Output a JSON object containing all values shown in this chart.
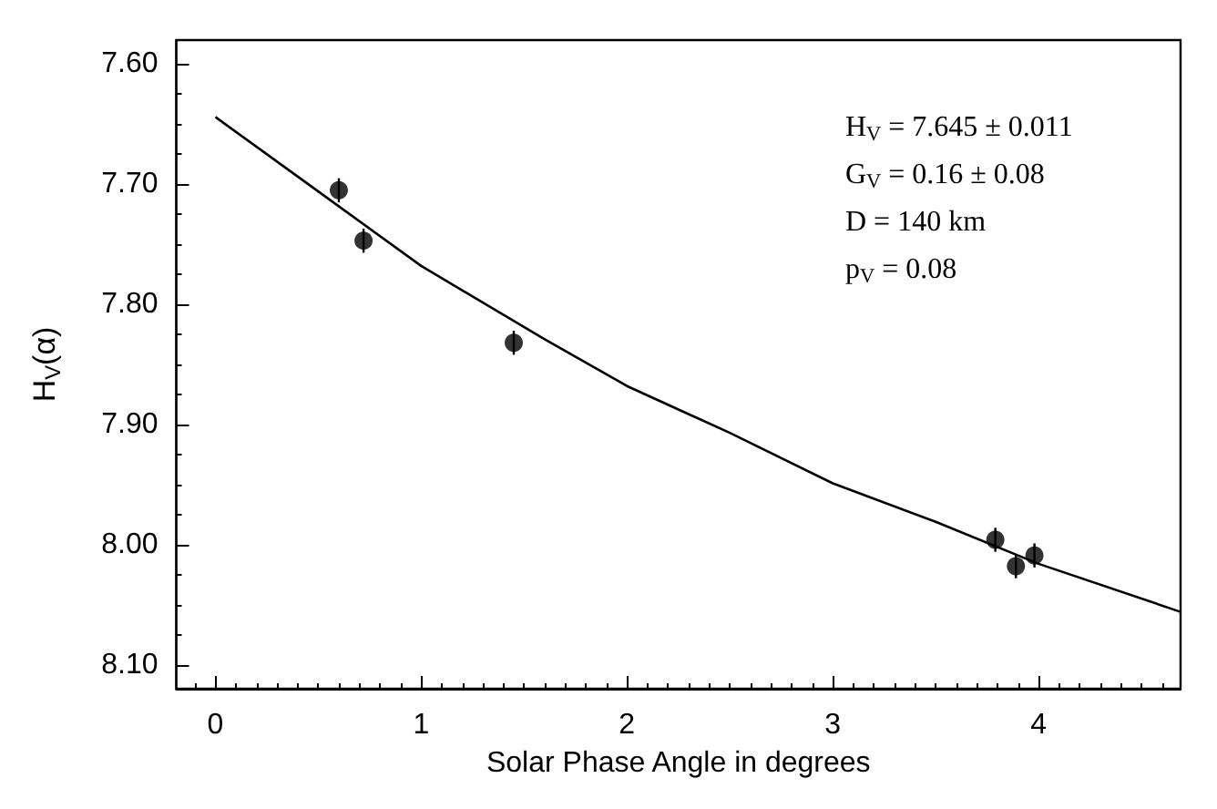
{
  "chart_data": {
    "type": "scatter",
    "xlabel": "Solar Phase Angle in degrees",
    "ylabel": "H$_{V}$(α)",
    "xlim": [
      -0.19,
      4.69
    ],
    "xticks": [
      0,
      1,
      2,
      3,
      4
    ],
    "ylim": [
      8.12,
      7.58
    ],
    "yticks": [
      {
        "value": 7.6,
        "label": "7.60"
      },
      {
        "value": 7.7,
        "label": "7.70"
      },
      {
        "value": 7.8,
        "label": "7.80"
      },
      {
        "value": 7.9,
        "label": "7.90"
      },
      {
        "value": 8.0,
        "label": "8.00"
      },
      {
        "value": 8.1,
        "label": "8.10"
      }
    ],
    "grid": false,
    "marker": "circle",
    "series": [
      {
        "color": "#000000",
        "x": [
          0.6,
          0.72,
          1.45,
          3.79,
          3.89,
          3.98
        ],
        "values": [
          7.705,
          7.747,
          7.832,
          7.996,
          8.018,
          8.009
        ],
        "errors": [
          0.01,
          0.01,
          0.01,
          0.01,
          0.01,
          0.01
        ]
      },
      {
        "type": "line",
        "color": "#000000",
        "marker": "none",
        "line_style": "solid",
        "x": [
          0,
          0.5,
          1,
          1.6,
          2,
          2.5,
          3,
          3.5,
          4,
          4.69
        ],
        "values": [
          7.644,
          7.706,
          7.768,
          7.829,
          7.868,
          7.907,
          7.949,
          7.981,
          8.016,
          8.056
        ]
      }
    ],
    "annotations": [
      "H$_{V}$ = 7.645 ± 0.011",
      "G$_{V}$ = 0.16 ± 0.08",
      "D = 140 km",
      "p$_{V}$ = 0.08"
    ]
  }
}
